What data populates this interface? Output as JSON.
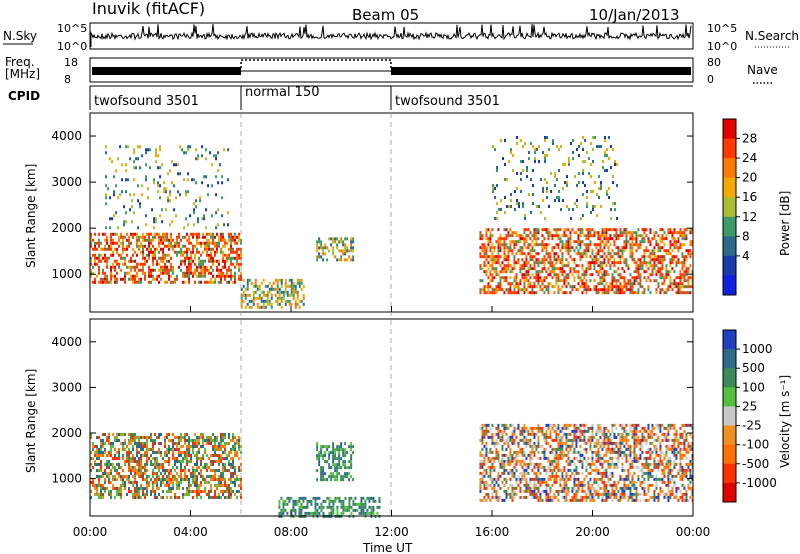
{
  "header": {
    "station": "Inuvik (fitACF)",
    "beam": "Beam 05",
    "date": "10/Jan/2013"
  },
  "top_panels": {
    "nsky_label": "N.Sky",
    "nsearch_label": "N.Search",
    "nsky_ticks": [
      "10^5",
      "10^0"
    ],
    "freq_label_line1": "Freq.",
    "freq_label_line2": "[MHz]",
    "freq_ticks": [
      "18",
      "8"
    ],
    "nave_label": "Nave",
    "nave_ticks": [
      "80",
      "0"
    ],
    "cpid_label": "CPID",
    "cpid_segments": [
      {
        "label": "twofsound 3501",
        "start_h": 0,
        "end_h": 6
      },
      {
        "label": "normal 150",
        "start_h": 6,
        "end_h": 12
      },
      {
        "label": "twofsound 3501",
        "start_h": 12,
        "end_h": 24
      }
    ]
  },
  "power_colorbar": {
    "label": "Power [dB]",
    "ticks": [
      "28",
      "24",
      "20",
      "16",
      "12",
      "8",
      "4"
    ],
    "colors": [
      "#e00000",
      "#ff3a00",
      "#ff7a00",
      "#f4a800",
      "#aabf30",
      "#3c9a64",
      "#2a6a8a",
      "#1a3aaa",
      "#1020e0"
    ]
  },
  "velocity_colorbar": {
    "label": "Velocity [m s⁻¹]",
    "ticks": [
      "1000",
      "500",
      "100",
      "25",
      "-25",
      "-100",
      "-500",
      "-1000"
    ],
    "colors": [
      "#2040c0",
      "#2e6a8a",
      "#3c8a5a",
      "#55c040",
      "#c8c8c8",
      "#f09020",
      "#ff7000",
      "#ff3000",
      "#e00000"
    ]
  },
  "chart_data": [
    {
      "type": "heatmap",
      "title": "Power",
      "xlabel": "",
      "ylabel": "Slant Range [km]",
      "yticks": [
        "1000",
        "2000",
        "3000",
        "4000"
      ],
      "ylim": [
        180,
        4500
      ],
      "xlim_hours": [
        0,
        24
      ],
      "regions": [
        {
          "t": [
            0.0,
            6.0
          ],
          "r": [
            800,
            1900
          ],
          "level": "high"
        },
        {
          "t": [
            0.6,
            5.5
          ],
          "r": [
            2000,
            3800
          ],
          "level": "scattered"
        },
        {
          "t": [
            6.0,
            8.5
          ],
          "r": [
            250,
            900
          ],
          "level": "mid"
        },
        {
          "t": [
            9.0,
            10.5
          ],
          "r": [
            1300,
            1800
          ],
          "level": "mid"
        },
        {
          "t": [
            15.5,
            24.0
          ],
          "r": [
            600,
            2000
          ],
          "level": "high"
        },
        {
          "t": [
            16.0,
            21.0
          ],
          "r": [
            2200,
            4000
          ],
          "level": "scattered"
        }
      ]
    },
    {
      "type": "heatmap",
      "title": "Velocity",
      "xlabel": "Time UT",
      "ylabel": "Slant Range [km]",
      "yticks": [
        "1000",
        "2000",
        "3000",
        "4000"
      ],
      "xticks": [
        "00:00",
        "04:00",
        "08:00",
        "12:00",
        "16:00",
        "20:00",
        "00:00"
      ],
      "ylim": [
        180,
        4500
      ],
      "xlim_hours": [
        0,
        24
      ],
      "regions": [
        {
          "t": [
            0.0,
            6.0
          ],
          "r": [
            600,
            2000
          ],
          "level": "mixed-orange-green"
        },
        {
          "t": [
            7.5,
            11.5
          ],
          "r": [
            200,
            600
          ],
          "level": "green"
        },
        {
          "t": [
            9.0,
            10.5
          ],
          "r": [
            1000,
            1800
          ],
          "level": "green"
        },
        {
          "t": [
            15.5,
            24.0
          ],
          "r": [
            500,
            2200
          ],
          "level": "mixed-orange-grey"
        }
      ]
    }
  ]
}
